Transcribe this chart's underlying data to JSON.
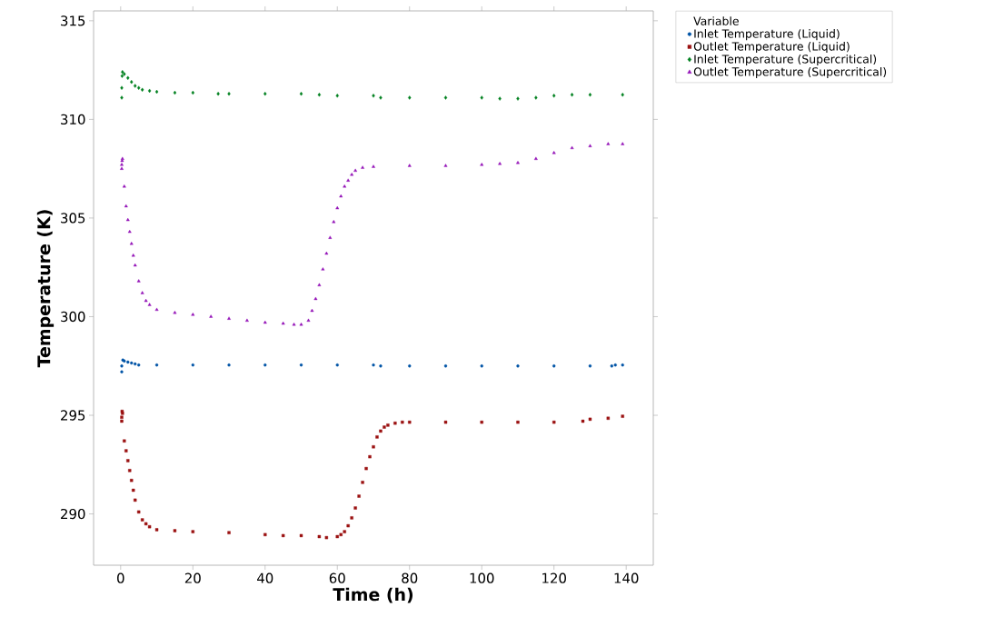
{
  "chart_data": {
    "type": "scatter",
    "xlabel": "Time (h)",
    "ylabel": "Temperature (K)",
    "legend_title": "Variable",
    "legend": "top right",
    "grid": false,
    "xlim": [
      -7.5,
      147.5
    ],
    "ylim": [
      287.4,
      315.5
    ],
    "xticks": [
      0,
      20,
      40,
      60,
      80,
      100,
      120,
      140
    ],
    "yticks": [
      290,
      295,
      300,
      305,
      310,
      315
    ],
    "series": [
      {
        "name": "Inlet Temperature (Liquid)",
        "color": "#0054a6",
        "marker": "circle",
        "x": [
          0.3,
          0.3,
          0.6,
          1,
          2,
          3,
          4,
          5,
          10,
          20,
          30,
          40,
          50,
          60,
          70,
          72,
          80,
          90,
          100,
          110,
          120,
          130,
          136,
          137,
          139
        ],
        "values": [
          297.2,
          297.5,
          297.8,
          297.75,
          297.7,
          297.65,
          297.6,
          297.55,
          297.55,
          297.55,
          297.55,
          297.55,
          297.55,
          297.55,
          297.55,
          297.5,
          297.5,
          297.5,
          297.5,
          297.5,
          297.5,
          297.5,
          297.5,
          297.55,
          297.55
        ]
      },
      {
        "name": "Outlet Temperature (Liquid)",
        "color": "#9b1111",
        "marker": "square",
        "x": [
          0.3,
          0.3,
          0.4,
          0.5,
          1,
          1.5,
          2,
          2.5,
          3,
          3.5,
          4,
          5,
          6,
          7,
          8,
          10,
          15,
          20,
          30,
          40,
          45,
          50,
          55,
          57,
          60,
          61,
          62,
          63,
          64,
          65,
          66,
          67,
          68,
          69,
          70,
          71,
          72,
          73,
          74,
          76,
          78,
          80,
          90,
          100,
          110,
          120,
          128,
          130,
          135,
          139
        ],
        "values": [
          294.7,
          294.9,
          295.2,
          295.1,
          293.7,
          293.2,
          292.7,
          292.2,
          291.7,
          291.2,
          290.7,
          290.1,
          289.7,
          289.5,
          289.35,
          289.2,
          289.15,
          289.1,
          289.05,
          288.95,
          288.9,
          288.9,
          288.85,
          288.8,
          288.85,
          288.95,
          289.1,
          289.4,
          289.8,
          290.3,
          290.9,
          291.6,
          292.3,
          292.9,
          293.4,
          293.9,
          294.2,
          294.4,
          294.5,
          294.6,
          294.65,
          294.65,
          294.65,
          294.65,
          294.65,
          294.65,
          294.7,
          294.8,
          294.85,
          294.95
        ]
      },
      {
        "name": "Inlet Temperature (Supercritical)",
        "color": "#00801f",
        "marker": "diamond",
        "x": [
          0.3,
          0.3,
          0.4,
          0.5,
          1,
          2,
          3,
          4,
          5,
          6,
          8,
          10,
          15,
          20,
          27,
          30,
          40,
          50,
          55,
          60,
          70,
          72,
          80,
          90,
          100,
          105,
          110,
          115,
          120,
          125,
          130,
          139
        ],
        "values": [
          311.1,
          311.6,
          312.2,
          312.4,
          312.3,
          312.1,
          311.9,
          311.7,
          311.6,
          311.5,
          311.45,
          311.4,
          311.35,
          311.35,
          311.3,
          311.3,
          311.3,
          311.3,
          311.25,
          311.2,
          311.2,
          311.1,
          311.1,
          311.1,
          311.1,
          311.05,
          311.05,
          311.1,
          311.2,
          311.25,
          311.25,
          311.25
        ]
      },
      {
        "name": "Outlet Temperature (Supercritical)",
        "color": "#9414b8",
        "marker": "triangle",
        "x": [
          0.3,
          0.3,
          0.4,
          0.5,
          1,
          1.5,
          2,
          2.5,
          3,
          3.5,
          4,
          5,
          6,
          7,
          8,
          10,
          15,
          20,
          25,
          30,
          35,
          40,
          45,
          48,
          50,
          52,
          53,
          54,
          55,
          56,
          57,
          58,
          59,
          60,
          61,
          62,
          63,
          64,
          65,
          67,
          70,
          80,
          90,
          100,
          105,
          110,
          115,
          120,
          125,
          130,
          135,
          139
        ],
        "values": [
          307.5,
          307.7,
          307.9,
          308.0,
          306.6,
          305.6,
          304.9,
          304.3,
          303.7,
          303.1,
          302.6,
          301.8,
          301.2,
          300.8,
          300.6,
          300.35,
          300.2,
          300.1,
          300.0,
          299.9,
          299.8,
          299.7,
          299.65,
          299.6,
          299.6,
          299.8,
          300.3,
          300.9,
          301.6,
          302.4,
          303.2,
          304.0,
          304.8,
          305.5,
          306.1,
          306.6,
          306.9,
          307.2,
          307.4,
          307.55,
          307.6,
          307.65,
          307.65,
          307.7,
          307.75,
          307.8,
          308.0,
          308.3,
          308.55,
          308.65,
          308.75,
          308.75
        ]
      }
    ]
  }
}
